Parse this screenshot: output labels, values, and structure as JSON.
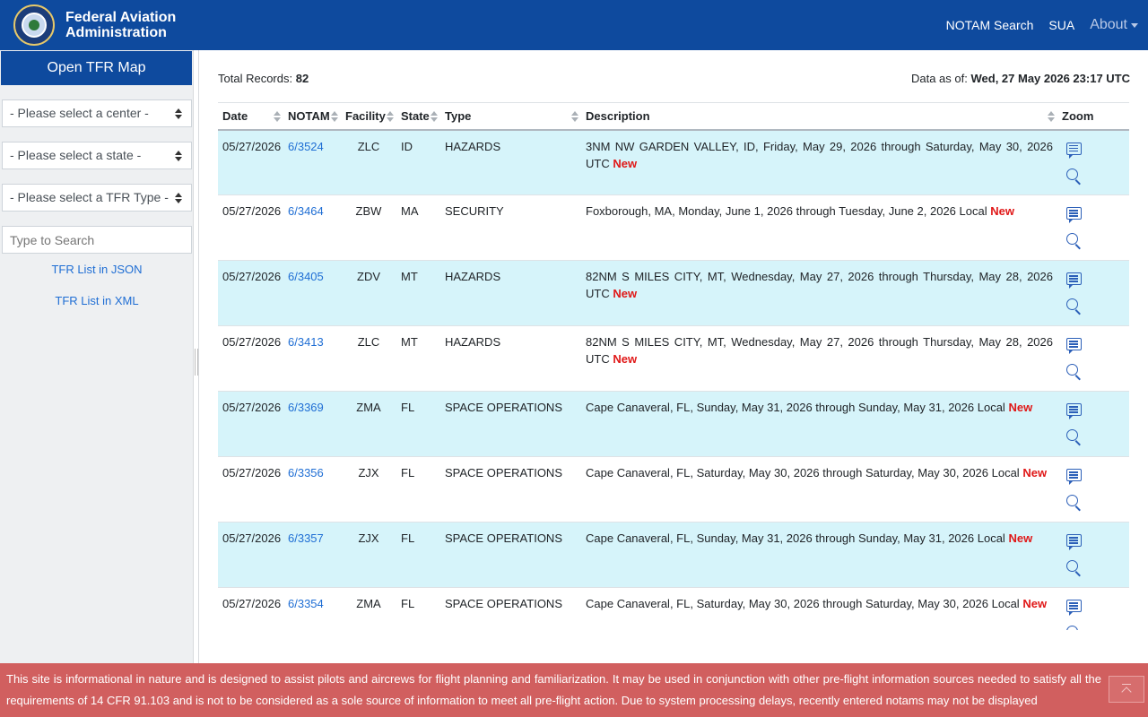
{
  "header": {
    "brand_line1": "Federal Aviation",
    "brand_line2": "Administration",
    "nav": {
      "notam_search": "NOTAM Search",
      "sua": "SUA",
      "about": "About"
    }
  },
  "sidebar": {
    "open_map": "Open TFR Map",
    "center_select": "- Please select a center -",
    "state_select": "- Please select a state -",
    "type_select": "- Please select a TFR Type -",
    "search_placeholder": "Type to Search",
    "json_link": "TFR List in JSON",
    "xml_link": "TFR List in XML"
  },
  "summary": {
    "total_label": "Total Records:",
    "total_value": "82",
    "asof_label": "Data as of:",
    "asof_value": "Wed, 27 May 2026 23:17 UTC"
  },
  "table": {
    "columns": [
      "Date",
      "NOTAM",
      "Facility",
      "State",
      "Type",
      "Description",
      "Zoom"
    ],
    "rows": [
      {
        "date": "05/27/2026",
        "notam": "6/3524",
        "facility": "ZLC",
        "state": "ID",
        "type": "HAZARDS",
        "description": "3NM NW GARDEN VALLEY, ID, Friday, May 29, 2026 through Saturday, May 30, 2026 UTC",
        "badge": "New"
      },
      {
        "date": "05/27/2026",
        "notam": "6/3464",
        "facility": "ZBW",
        "state": "MA",
        "type": "SECURITY",
        "description": "Foxborough, MA, Monday, June 1, 2026 through Tuesday, June 2, 2026 Local",
        "badge": "New"
      },
      {
        "date": "05/27/2026",
        "notam": "6/3405",
        "facility": "ZDV",
        "state": "MT",
        "type": "HAZARDS",
        "description": "82NM S MILES CITY, MT, Wednesday, May 27, 2026 through Thursday, May 28, 2026 UTC",
        "badge": "New"
      },
      {
        "date": "05/27/2026",
        "notam": "6/3413",
        "facility": "ZLC",
        "state": "MT",
        "type": "HAZARDS",
        "description": "82NM S MILES CITY, MT, Wednesday, May 27, 2026 through Thursday, May 28, 2026 UTC",
        "badge": "New"
      },
      {
        "date": "05/27/2026",
        "notam": "6/3369",
        "facility": "ZMA",
        "state": "FL",
        "type": "SPACE OPERATIONS",
        "description": "Cape Canaveral, FL, Sunday, May 31, 2026 through Sunday, May 31, 2026 Local",
        "badge": "New"
      },
      {
        "date": "05/27/2026",
        "notam": "6/3356",
        "facility": "ZJX",
        "state": "FL",
        "type": "SPACE OPERATIONS",
        "description": "Cape Canaveral, FL, Saturday, May 30, 2026 through Saturday, May 30, 2026 Local",
        "badge": "New"
      },
      {
        "date": "05/27/2026",
        "notam": "6/3357",
        "facility": "ZJX",
        "state": "FL",
        "type": "SPACE OPERATIONS",
        "description": "Cape Canaveral, FL, Sunday, May 31, 2026 through Sunday, May 31, 2026 Local",
        "badge": "New"
      },
      {
        "date": "05/27/2026",
        "notam": "6/3354",
        "facility": "ZMA",
        "state": "FL",
        "type": "SPACE OPERATIONS",
        "description": "Cape Canaveral, FL, Saturday, May 30, 2026 through Saturday, May 30, 2026 Local",
        "badge": "New"
      }
    ]
  },
  "footer": {
    "disclaimer": "This site is informational in nature and is designed to assist pilots and aircrews for flight planning and familiarization. It may be used in conjunction with other pre-flight information sources needed to satisfy all the requirements of 14 CFR 91.103 and is not to be considered as a sole source of information to meet all pre-flight action. Due to system processing delays, recently entered notams may not be displayed"
  },
  "icons": {
    "logo": "faa-seal-logo",
    "detail": "detail-list-icon",
    "zoom": "magnifier-icon",
    "scroll_top": "scroll-to-top-icon"
  },
  "colors": {
    "brand_blue": "#0e4a9e",
    "row_highlight": "#d6f4fa",
    "link": "#1f6ed4",
    "new_badge": "#e01818",
    "footer_bg": "#d15f5f"
  }
}
